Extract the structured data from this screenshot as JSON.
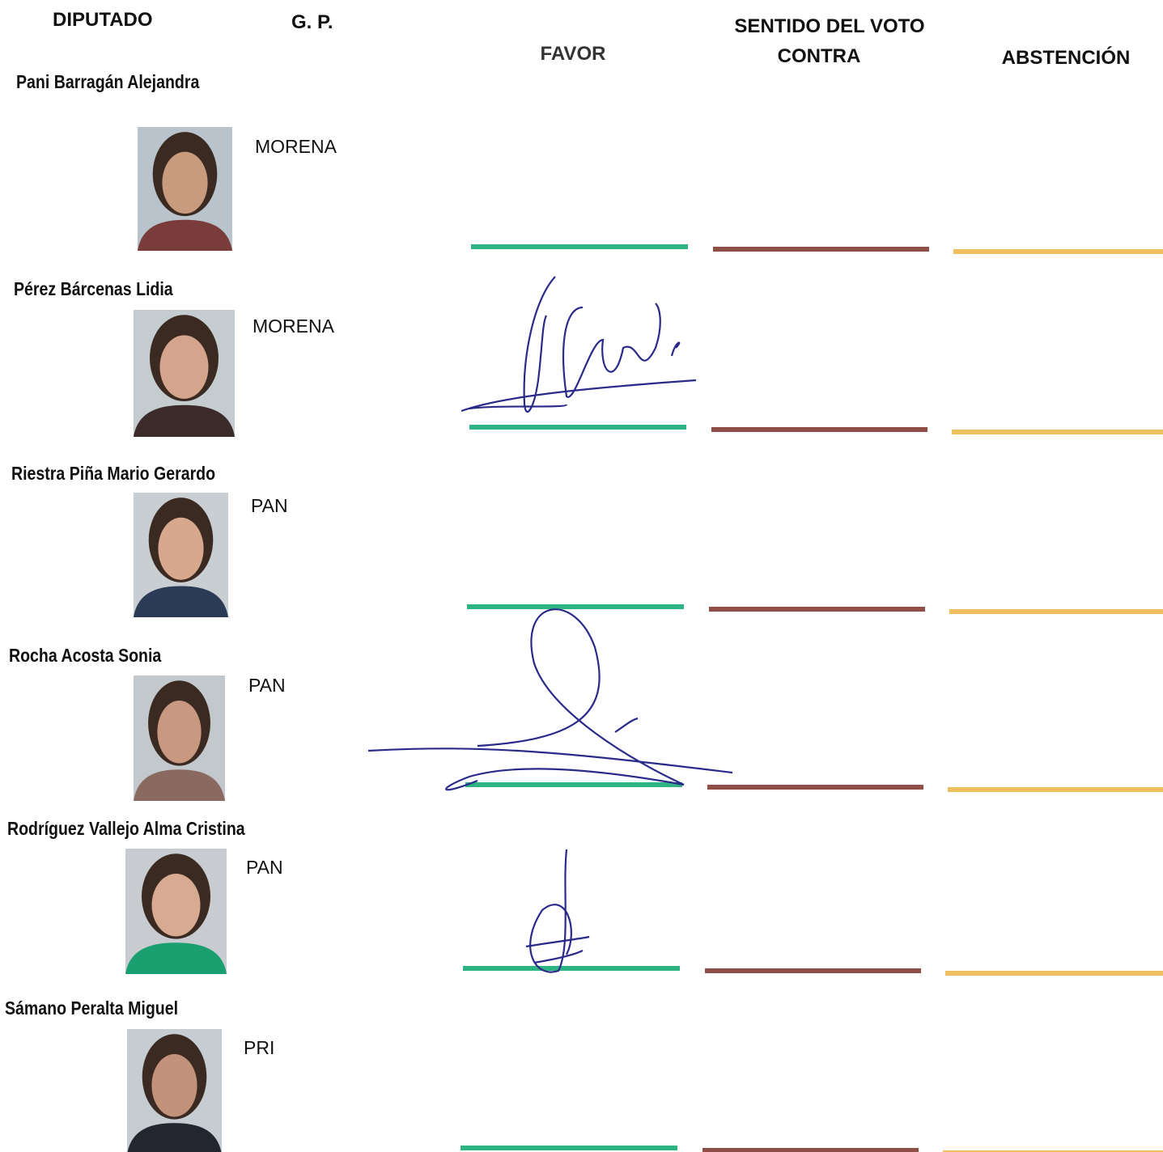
{
  "header": {
    "diputado": "DIPUTADO",
    "gp": "G. P.",
    "sentido": "SENTIDO DEL VOTO",
    "favor": "FAVOR",
    "contra": "CONTRA",
    "abstencion": "ABSTENCIÓN"
  },
  "rows": [
    {
      "name": "Pani Barragán Alejandra",
      "party": "MORENA"
    },
    {
      "name": "Pérez Bárcenas Lidia",
      "party": "MORENA"
    },
    {
      "name": "Riestra Piña Mario Gerardo",
      "party": "PAN"
    },
    {
      "name": "Rocha Acosta Sonia",
      "party": "PAN"
    },
    {
      "name": "Rodríguez Vallejo Alma Cristina",
      "party": "PAN"
    },
    {
      "name": "Sámano Peralta Miguel",
      "party": "PRI"
    }
  ]
}
